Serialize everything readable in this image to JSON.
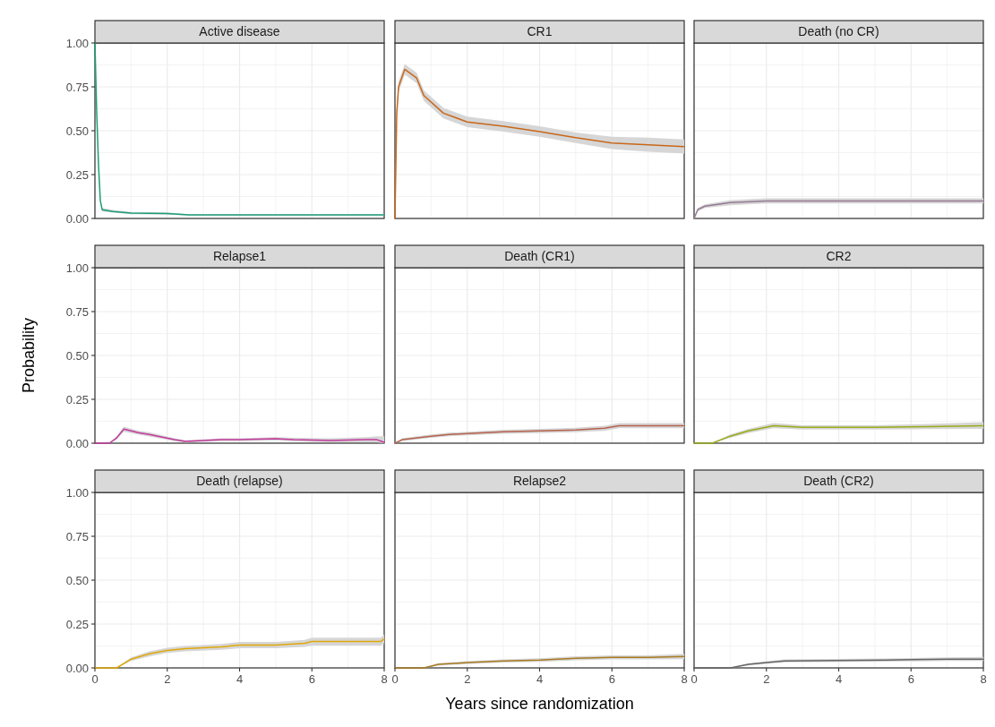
{
  "chart_data": [
    {
      "type": "line",
      "title": "Active disease",
      "xlim": [
        0,
        8
      ],
      "ylim": [
        0,
        1
      ],
      "xticks": [
        0,
        2,
        4,
        6,
        8
      ],
      "yticks": [
        {
          "value": 0,
          "label": "0.00"
        },
        0.25,
        {
          "value": 0.5,
          "label": "0.50"
        },
        0.75,
        {
          "value": 1,
          "label": "1.00"
        }
      ],
      "grid": true,
      "tick_labels": "y",
      "series": [
        {
          "color": "#1b9e77",
          "x": [
            0,
            0.05,
            0.1,
            0.15,
            0.2,
            0.5,
            1,
            2,
            2.6,
            8
          ],
          "values": [
            1,
            0.6,
            0.3,
            0.1,
            0.05,
            0.04,
            0.03,
            0.028,
            0.02,
            0.02
          ],
          "lower": [
            1,
            0.59,
            0.29,
            0.09,
            0.04,
            0.033,
            0.024,
            0.022,
            0.016,
            0.016
          ],
          "upper": [
            1,
            0.61,
            0.31,
            0.11,
            0.06,
            0.048,
            0.037,
            0.034,
            0.024,
            0.024
          ]
        }
      ]
    },
    {
      "type": "line",
      "title": "CR1",
      "xlim": [
        0,
        8
      ],
      "ylim": [
        0,
        1
      ],
      "xticks": [
        0,
        2,
        4,
        6,
        8
      ],
      "yticks": [
        0,
        0.25,
        0.5,
        0.75,
        1
      ],
      "grid": true,
      "tick_labels": false,
      "series": [
        {
          "color": "#c8671a",
          "x": [
            0,
            0.05,
            0.1,
            0.27,
            0.6,
            0.8,
            1.34,
            2,
            3,
            4,
            5,
            6,
            7,
            8
          ],
          "values": [
            0,
            0.6,
            0.75,
            0.85,
            0.8,
            0.7,
            0.6,
            0.55,
            0.525,
            0.495,
            0.46,
            0.43,
            0.42,
            0.41
          ],
          "lower": [
            0,
            0.57,
            0.72,
            0.82,
            0.77,
            0.67,
            0.57,
            0.52,
            0.495,
            0.465,
            0.43,
            0.395,
            0.38,
            0.37
          ],
          "upper": [
            0,
            0.63,
            0.78,
            0.88,
            0.83,
            0.73,
            0.63,
            0.58,
            0.555,
            0.525,
            0.49,
            0.465,
            0.46,
            0.45
          ]
        }
      ]
    },
    {
      "type": "line",
      "title": "Death (no CR)",
      "xlim": [
        0,
        8
      ],
      "ylim": [
        0,
        1
      ],
      "xticks": [
        0,
        2,
        4,
        6,
        8
      ],
      "yticks": [
        0,
        0.25,
        0.5,
        0.75,
        1
      ],
      "grid": true,
      "tick_labels": false,
      "series": [
        {
          "color": "#957a93",
          "x": [
            0,
            0.1,
            0.3,
            1,
            2,
            8
          ],
          "values": [
            0,
            0.05,
            0.07,
            0.09,
            0.1,
            0.1
          ],
          "lower": [
            0,
            0.04,
            0.06,
            0.075,
            0.085,
            0.085
          ],
          "upper": [
            0,
            0.06,
            0.08,
            0.105,
            0.115,
            0.115
          ]
        }
      ]
    },
    {
      "type": "line",
      "title": "Relapse1",
      "ylabel": "Probability",
      "xlim": [
        0,
        8
      ],
      "ylim": [
        0,
        1
      ],
      "xticks": [
        0,
        2,
        4,
        6,
        8
      ],
      "yticks": [
        {
          "value": 0,
          "label": "0.00"
        },
        0.25,
        {
          "value": 0.5,
          "label": "0.50"
        },
        0.75,
        {
          "value": 1,
          "label": "1.00"
        }
      ],
      "grid": true,
      "tick_labels": "y",
      "series": [
        {
          "color": "#c23a9b",
          "x": [
            0,
            0.4,
            0.6,
            0.8,
            1.2,
            1.5,
            2.2,
            2.5,
            3,
            3.5,
            4,
            5,
            5.5,
            6.5,
            7.5,
            7.8,
            8
          ],
          "values": [
            0,
            0,
            0.03,
            0.08,
            0.06,
            0.05,
            0.02,
            0.01,
            0.015,
            0.02,
            0.02,
            0.025,
            0.02,
            0.015,
            0.02,
            0.02,
            0.005
          ],
          "lower": [
            0,
            0,
            0.02,
            0.065,
            0.048,
            0.038,
            0.012,
            0.004,
            0.008,
            0.012,
            0.012,
            0.015,
            0.01,
            0.005,
            0.005,
            0.005,
            0
          ],
          "upper": [
            0,
            0,
            0.04,
            0.095,
            0.072,
            0.062,
            0.028,
            0.016,
            0.022,
            0.028,
            0.028,
            0.035,
            0.03,
            0.028,
            0.035,
            0.04,
            0.04
          ]
        }
      ]
    },
    {
      "type": "line",
      "title": "Death (CR1)",
      "xlim": [
        0,
        8
      ],
      "ylim": [
        0,
        1
      ],
      "xticks": [
        0,
        2,
        4,
        6,
        8
      ],
      "yticks": [
        0,
        0.25,
        0.5,
        0.75,
        1
      ],
      "grid": true,
      "tick_labels": false,
      "series": [
        {
          "color": "#b5624e",
          "x": [
            0,
            0.2,
            1,
            1.5,
            2,
            3,
            4,
            5,
            5.8,
            6.2,
            8
          ],
          "values": [
            0,
            0.02,
            0.04,
            0.05,
            0.055,
            0.065,
            0.07,
            0.075,
            0.085,
            0.1,
            0.1
          ],
          "lower": [
            0,
            0.012,
            0.03,
            0.04,
            0.045,
            0.053,
            0.058,
            0.062,
            0.07,
            0.085,
            0.085
          ],
          "upper": [
            0,
            0.028,
            0.05,
            0.06,
            0.065,
            0.077,
            0.082,
            0.088,
            0.1,
            0.115,
            0.115
          ]
        }
      ]
    },
    {
      "type": "line",
      "title": "CR2",
      "xlim": [
        0,
        8
      ],
      "ylim": [
        0,
        1
      ],
      "xticks": [
        0,
        2,
        4,
        6,
        8
      ],
      "yticks": [
        0,
        0.25,
        0.5,
        0.75,
        1
      ],
      "grid": true,
      "tick_labels": false,
      "series": [
        {
          "color": "#9aab1a",
          "x": [
            0,
            0.5,
            1,
            1.5,
            2.2,
            3,
            5,
            6.5,
            8
          ],
          "values": [
            0,
            0,
            0.04,
            0.07,
            0.1,
            0.09,
            0.09,
            0.095,
            0.1
          ],
          "lower": [
            0,
            0,
            0.03,
            0.058,
            0.085,
            0.078,
            0.078,
            0.08,
            0.082
          ],
          "upper": [
            0,
            0,
            0.05,
            0.082,
            0.115,
            0.102,
            0.102,
            0.11,
            0.12
          ]
        }
      ]
    },
    {
      "type": "line",
      "title": "Death (relapse)",
      "xlim": [
        0,
        8
      ],
      "ylim": [
        0,
        1
      ],
      "xticks": [
        0,
        2,
        4,
        6,
        8
      ],
      "yticks": [
        {
          "value": 0,
          "label": "0.00"
        },
        0.25,
        {
          "value": 0.5,
          "label": "0.50"
        },
        0.75,
        {
          "value": 1,
          "label": "1.00"
        }
      ],
      "grid": true,
      "series": [
        {
          "color": "#e0a80a",
          "x": [
            0,
            0.6,
            1,
            1.5,
            2,
            2.5,
            3.5,
            4,
            5,
            5.8,
            6,
            7.9,
            8
          ],
          "values": [
            0,
            0,
            0.05,
            0.08,
            0.1,
            0.11,
            0.12,
            0.13,
            0.13,
            0.14,
            0.15,
            0.15,
            0.165
          ],
          "lower": [
            0,
            0,
            0.04,
            0.065,
            0.085,
            0.095,
            0.103,
            0.112,
            0.112,
            0.12,
            0.128,
            0.128,
            0.14
          ],
          "upper": [
            0,
            0,
            0.06,
            0.095,
            0.115,
            0.125,
            0.137,
            0.148,
            0.148,
            0.16,
            0.172,
            0.172,
            0.19
          ]
        }
      ]
    },
    {
      "type": "line",
      "title": "Relapse2",
      "xlabel": "Years since randomization",
      "xlim": [
        0,
        8
      ],
      "ylim": [
        0,
        1
      ],
      "xticks": [
        0,
        2,
        4,
        6,
        8
      ],
      "yticks": [
        0,
        0.25,
        0.5,
        0.75,
        1
      ],
      "grid": true,
      "tick_labels": "x",
      "series": [
        {
          "color": "#a87b23",
          "x": [
            0,
            0.8,
            1.2,
            2,
            3,
            4,
            5,
            6,
            7,
            8
          ],
          "values": [
            0,
            0,
            0.02,
            0.03,
            0.04,
            0.045,
            0.055,
            0.06,
            0.06,
            0.065
          ],
          "lower": [
            0,
            0,
            0.013,
            0.022,
            0.031,
            0.035,
            0.044,
            0.048,
            0.048,
            0.05
          ],
          "upper": [
            0,
            0,
            0.027,
            0.038,
            0.049,
            0.055,
            0.066,
            0.072,
            0.072,
            0.08
          ]
        }
      ]
    },
    {
      "type": "line",
      "title": "Death (CR2)",
      "xlim": [
        0,
        8
      ],
      "ylim": [
        0,
        1
      ],
      "xticks": [
        0,
        2,
        4,
        6,
        8
      ],
      "yticks": [
        0,
        0.25,
        0.5,
        0.75,
        1
      ],
      "grid": true,
      "tick_labels": "x",
      "series": [
        {
          "color": "#666666",
          "x": [
            0,
            1,
            1.5,
            2,
            2.5,
            5.3,
            7,
            8
          ],
          "values": [
            0,
            0,
            0.02,
            0.03,
            0.04,
            0.045,
            0.05,
            0.05
          ],
          "lower": [
            0,
            0,
            0.014,
            0.023,
            0.032,
            0.036,
            0.04,
            0.04
          ],
          "upper": [
            0,
            0,
            0.026,
            0.037,
            0.048,
            0.054,
            0.06,
            0.062
          ]
        }
      ]
    }
  ]
}
